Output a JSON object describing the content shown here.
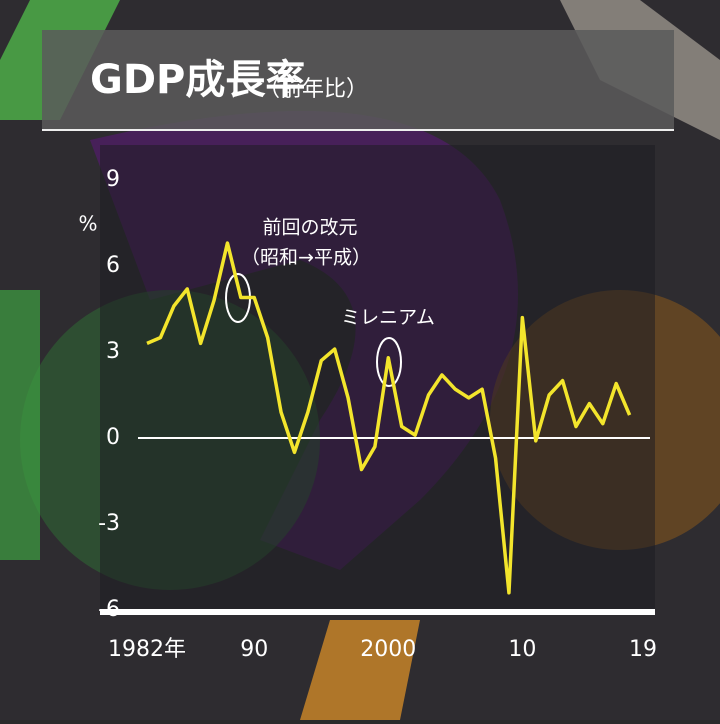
{
  "chart_data": {
    "type": "line",
    "title": "GDP成長率",
    "subtitle": "（前年比）",
    "y_unit": "%",
    "x": [
      1982,
      1983,
      1984,
      1985,
      1986,
      1987,
      1988,
      1989,
      1990,
      1991,
      1992,
      1993,
      1994,
      1995,
      1996,
      1997,
      1998,
      1999,
      2000,
      2001,
      2002,
      2003,
      2004,
      2005,
      2006,
      2007,
      2008,
      2009,
      2010,
      2011,
      2012,
      2013,
      2014,
      2015,
      2016,
      2017,
      2018
    ],
    "series": [
      {
        "name": "GDP成長率",
        "color": "#f3e52c",
        "values": [
          3.3,
          3.5,
          4.6,
          5.2,
          3.3,
          4.8,
          6.8,
          4.9,
          4.9,
          3.5,
          0.9,
          -0.5,
          0.9,
          2.7,
          3.1,
          1.4,
          -1.1,
          -0.3,
          2.8,
          0.4,
          0.1,
          1.5,
          2.2,
          1.7,
          1.4,
          1.7,
          -0.7,
          -5.4,
          4.2,
          -0.1,
          1.5,
          2.0,
          0.4,
          1.2,
          0.5,
          1.9,
          0.8
        ]
      }
    ],
    "xlim": [
      1982,
      2019
    ],
    "xticks": [
      {
        "value": 1982,
        "label": "1982年"
      },
      {
        "value": 1990,
        "label": "90"
      },
      2000,
      {
        "value": 2010,
        "label": "10"
      },
      {
        "value": 2019,
        "label": "19"
      }
    ],
    "ylim": [
      -6,
      9
    ],
    "yticks": [
      9,
      6,
      3,
      0,
      -3,
      -6
    ],
    "annotations": [
      {
        "lines": [
          "前回の改元",
          "（昭和→平成）"
        ]
      },
      {
        "lines": [
          "ミレニアム"
        ]
      }
    ]
  }
}
